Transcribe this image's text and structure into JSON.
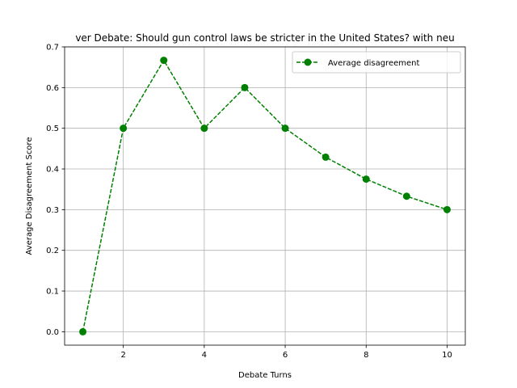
{
  "chart_data": {
    "type": "line",
    "title": "ver Debate: Should gun control laws be stricter in the United States? with neu",
    "xlabel": "Debate Turns",
    "ylabel": "Average Disagreement Score",
    "xlim": [
      0.55,
      10.45
    ],
    "ylim": [
      -0.033,
      0.7
    ],
    "xticks": [
      2,
      4,
      6,
      8,
      10
    ],
    "yticks": [
      0.0,
      0.1,
      0.2,
      0.3,
      0.4,
      0.5,
      0.6,
      0.7
    ],
    "xtick_labels": [
      "2",
      "4",
      "6",
      "8",
      "10"
    ],
    "ytick_labels": [
      "0.0",
      "0.1",
      "0.2",
      "0.3",
      "0.4",
      "0.5",
      "0.6",
      "0.7"
    ],
    "grid": true,
    "legend_position": "top-right",
    "series": [
      {
        "name": "Average disagreement",
        "color": "#008000",
        "line_style": "dashed",
        "marker": "circle",
        "x": [
          1,
          2,
          3,
          4,
          5,
          6,
          7,
          8,
          9,
          10
        ],
        "y": [
          0.0,
          0.5,
          0.667,
          0.5,
          0.6,
          0.5,
          0.429,
          0.375,
          0.333,
          0.3
        ]
      }
    ]
  }
}
